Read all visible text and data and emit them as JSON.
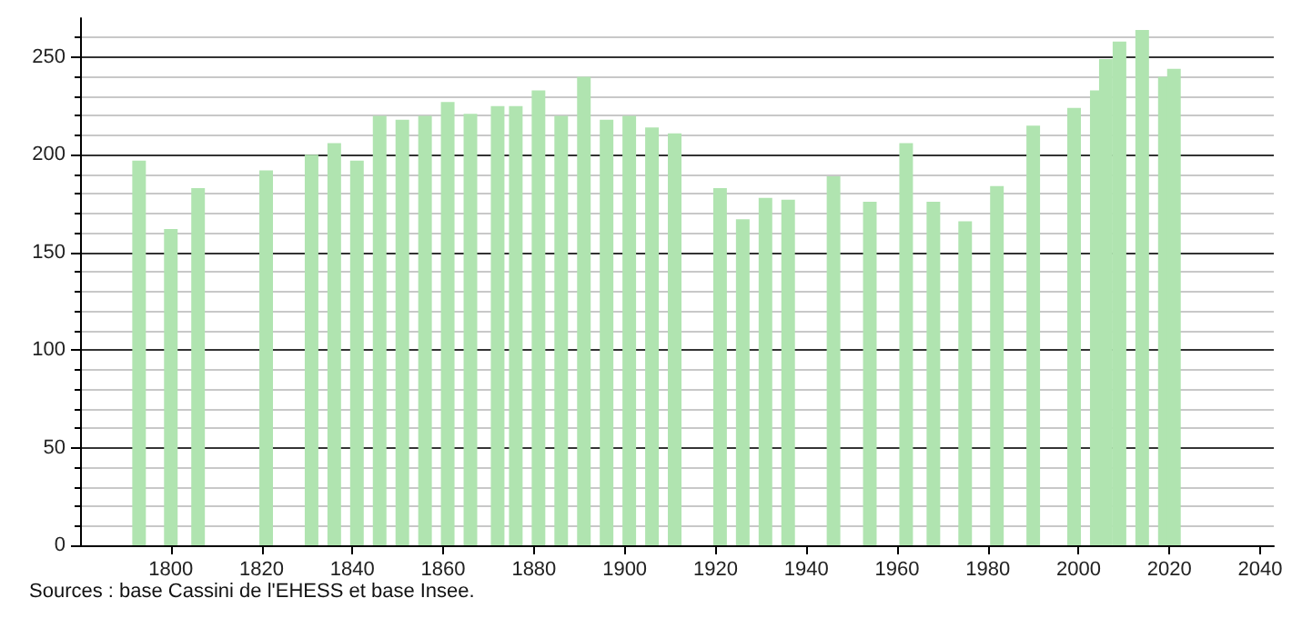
{
  "chart_data": {
    "type": "bar",
    "x": [
      1793,
      1800,
      1806,
      1821,
      1831,
      1836,
      1841,
      1846,
      1851,
      1856,
      1861,
      1866,
      1872,
      1876,
      1881,
      1886,
      1891,
      1896,
      1901,
      1906,
      1911,
      1921,
      1926,
      1931,
      1936,
      1946,
      1954,
      1962,
      1968,
      1975,
      1982,
      1990,
      1999,
      2004,
      2006,
      2009,
      2014,
      2019,
      2021
    ],
    "values": [
      197,
      162,
      183,
      192,
      200,
      206,
      197,
      220,
      218,
      220,
      227,
      221,
      225,
      225,
      233,
      220,
      240,
      218,
      220,
      214,
      211,
      183,
      167,
      178,
      177,
      189,
      176,
      206,
      176,
      166,
      184,
      215,
      224,
      233,
      249,
      258,
      264,
      240,
      244
    ],
    "color": "#b0e4b0",
    "xlim": [
      1780,
      2043
    ],
    "xticks": [
      1800,
      1820,
      1840,
      1860,
      1880,
      1900,
      1920,
      1940,
      1960,
      1980,
      2000,
      2020,
      2040
    ],
    "ylim": [
      0,
      270
    ],
    "yticks": [
      0,
      50,
      100,
      150,
      200,
      250
    ],
    "grid": "y",
    "annotations": [
      "Sources : base Cassini de l'EHESS et base Insee."
    ]
  }
}
